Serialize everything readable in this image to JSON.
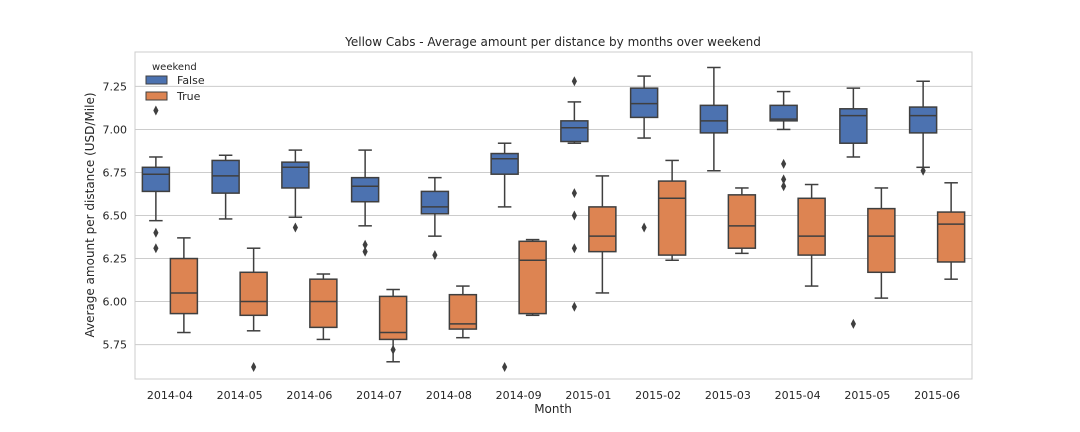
{
  "chart_data": {
    "type": "box",
    "title": "Yellow Cabs - Average amount per distance by months over weekend",
    "xlabel": "Month",
    "ylabel": "Average amount per distance (USD/Mile)",
    "ylim": [
      5.55,
      7.45
    ],
    "yticks": [
      5.75,
      6.0,
      6.25,
      6.5,
      6.75,
      7.0,
      7.25
    ],
    "ytick_labels": [
      "5.75",
      "6.00",
      "6.25",
      "6.50",
      "6.75",
      "7.00",
      "7.25"
    ],
    "grid": true,
    "legend": {
      "title": "weekend",
      "position": "top-left"
    },
    "categories": [
      "2014-04",
      "2014-05",
      "2014-06",
      "2014-07",
      "2014-08",
      "2014-09",
      "2015-01",
      "2015-02",
      "2015-03",
      "2015-04",
      "2015-05",
      "2015-06"
    ],
    "series": [
      {
        "name": "False",
        "color": "#4c72b0",
        "boxes": [
          {
            "whislo": 6.47,
            "q1": 6.64,
            "med": 6.74,
            "q3": 6.78,
            "whishi": 6.84,
            "fliers": [
              7.11,
              6.4,
              6.31
            ]
          },
          {
            "whislo": 6.48,
            "q1": 6.63,
            "med": 6.73,
            "q3": 6.82,
            "whishi": 6.85,
            "fliers": []
          },
          {
            "whislo": 6.49,
            "q1": 6.66,
            "med": 6.78,
            "q3": 6.81,
            "whishi": 6.88,
            "fliers": [
              6.43
            ]
          },
          {
            "whislo": 6.44,
            "q1": 6.58,
            "med": 6.67,
            "q3": 6.72,
            "whishi": 6.88,
            "fliers": [
              6.33,
              6.29
            ]
          },
          {
            "whislo": 6.38,
            "q1": 6.51,
            "med": 6.55,
            "q3": 6.64,
            "whishi": 6.72,
            "fliers": [
              6.27
            ]
          },
          {
            "whislo": 6.55,
            "q1": 6.74,
            "med": 6.83,
            "q3": 6.86,
            "whishi": 6.92,
            "fliers": [
              5.62
            ]
          },
          {
            "whislo": 6.92,
            "q1": 6.93,
            "med": 7.01,
            "q3": 7.05,
            "whishi": 7.16,
            "fliers": [
              7.28,
              6.63,
              6.5,
              6.31,
              5.97
            ]
          },
          {
            "whislo": 6.95,
            "q1": 7.07,
            "med": 7.15,
            "q3": 7.24,
            "whishi": 7.31,
            "fliers": [
              6.43
            ]
          },
          {
            "whislo": 6.76,
            "q1": 6.98,
            "med": 7.05,
            "q3": 7.14,
            "whishi": 7.36,
            "fliers": []
          },
          {
            "whislo": 7.0,
            "q1": 7.05,
            "med": 7.06,
            "q3": 7.14,
            "whishi": 7.22,
            "fliers": [
              6.8,
              6.71,
              6.67
            ]
          },
          {
            "whislo": 6.84,
            "q1": 6.92,
            "med": 7.08,
            "q3": 7.12,
            "whishi": 7.24,
            "fliers": [
              5.87
            ]
          },
          {
            "whislo": 6.78,
            "q1": 6.98,
            "med": 7.08,
            "q3": 7.13,
            "whishi": 7.28,
            "fliers": [
              6.76
            ]
          }
        ]
      },
      {
        "name": "True",
        "color": "#dd8452",
        "boxes": [
          {
            "whislo": 5.82,
            "q1": 5.93,
            "med": 6.05,
            "q3": 6.25,
            "whishi": 6.37,
            "fliers": []
          },
          {
            "whislo": 5.83,
            "q1": 5.92,
            "med": 6.0,
            "q3": 6.17,
            "whishi": 6.31,
            "fliers": [
              5.62
            ]
          },
          {
            "whislo": 5.78,
            "q1": 5.85,
            "med": 6.0,
            "q3": 6.13,
            "whishi": 6.16,
            "fliers": []
          },
          {
            "whislo": 5.65,
            "q1": 5.78,
            "med": 5.82,
            "q3": 6.03,
            "whishi": 6.07,
            "fliers": [
              5.72
            ]
          },
          {
            "whislo": 5.79,
            "q1": 5.84,
            "med": 5.87,
            "q3": 6.04,
            "whishi": 6.09,
            "fliers": []
          },
          {
            "whislo": 5.92,
            "q1": 5.93,
            "med": 6.24,
            "q3": 6.35,
            "whishi": 6.36,
            "fliers": []
          },
          {
            "whislo": 6.05,
            "q1": 6.29,
            "med": 6.38,
            "q3": 6.55,
            "whishi": 6.73,
            "fliers": []
          },
          {
            "whislo": 6.24,
            "q1": 6.27,
            "med": 6.6,
            "q3": 6.7,
            "whishi": 6.82,
            "fliers": []
          },
          {
            "whislo": 6.28,
            "q1": 6.31,
            "med": 6.44,
            "q3": 6.62,
            "whishi": 6.66,
            "fliers": []
          },
          {
            "whislo": 6.09,
            "q1": 6.27,
            "med": 6.38,
            "q3": 6.6,
            "whishi": 6.68,
            "fliers": []
          },
          {
            "whislo": 6.02,
            "q1": 6.17,
            "med": 6.38,
            "q3": 6.54,
            "whishi": 6.66,
            "fliers": []
          },
          {
            "whislo": 6.13,
            "q1": 6.23,
            "med": 6.45,
            "q3": 6.52,
            "whishi": 6.69,
            "fliers": []
          }
        ]
      }
    ]
  }
}
